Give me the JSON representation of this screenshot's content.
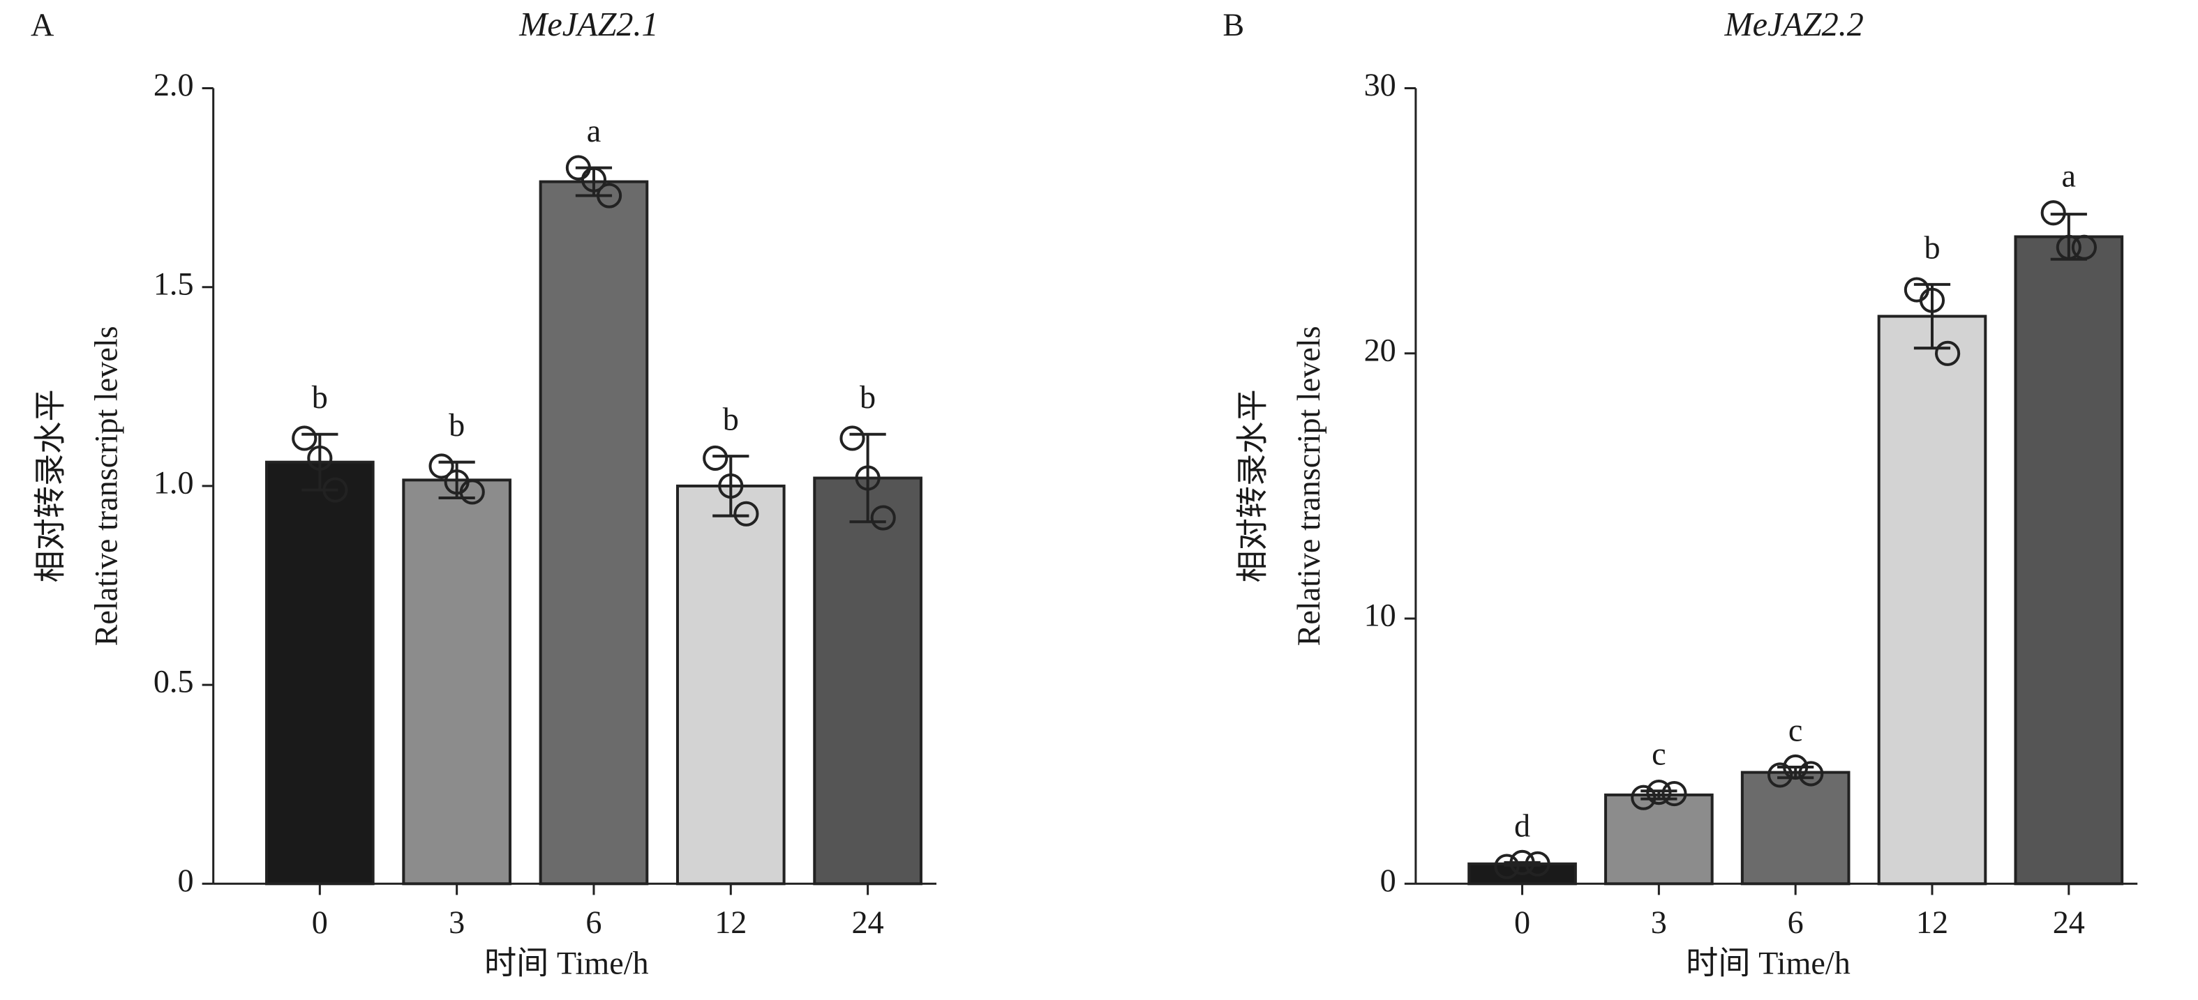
{
  "chart_data": [
    {
      "type": "bar",
      "panel_label": "A",
      "title": "MeJAZ2.1",
      "ylabel": [
        "相对转录水平",
        "Relative transcript levels"
      ],
      "xlabel": "时间 Time/h",
      "categories": [
        "0",
        "3",
        "6",
        "12",
        "24"
      ],
      "values": [
        1.06,
        1.015,
        1.765,
        1.0,
        1.02
      ],
      "errors": [
        0.07,
        0.045,
        0.035,
        0.075,
        0.11
      ],
      "points": [
        [
          1.12,
          1.07,
          0.99
        ],
        [
          1.05,
          1.01,
          0.985
        ],
        [
          1.8,
          1.77,
          1.73
        ],
        [
          1.07,
          1.0,
          0.93
        ],
        [
          1.12,
          1.02,
          0.92
        ]
      ],
      "annotations": [
        "b",
        "b",
        "a",
        "b",
        "b"
      ],
      "colors": [
        "#1a1a1a",
        "#8c8c8c",
        "#6b6b6b",
        "#d3d3d3",
        "#555555"
      ],
      "ylim": [
        0,
        2.0
      ],
      "yticks": [
        0,
        0.5,
        {
          "value": 1,
          "label": "1.0"
        },
        1.5,
        {
          "value": 2,
          "label": "2.0"
        }
      ]
    },
    {
      "type": "bar",
      "panel_label": "B",
      "title": "MeJAZ2.2",
      "ylabel": [
        "相对转录水平",
        "Relative transcript levels"
      ],
      "xlabel": "时间 Time/h",
      "categories": [
        "0",
        "3",
        "6",
        "12",
        "24"
      ],
      "values": [
        0.75,
        3.35,
        4.2,
        21.4,
        24.4
      ],
      "errors": [
        0.05,
        0.15,
        0.2,
        1.2,
        0.85
      ],
      "points": [
        [
          0.65,
          0.8,
          0.75
        ],
        [
          3.25,
          3.45,
          3.4
        ],
        [
          4.1,
          4.4,
          4.15
        ],
        [
          22.4,
          22.0,
          20.0
        ],
        [
          25.3,
          24.0,
          24.0
        ]
      ],
      "annotations": [
        "d",
        "c",
        "c",
        "b",
        "a"
      ],
      "colors": [
        "#1a1a1a",
        "#8c8c8c",
        "#6b6b6b",
        "#d3d3d3",
        "#555555"
      ],
      "ylim": [
        0,
        30
      ],
      "yticks": [
        0,
        10,
        20,
        30
      ]
    }
  ]
}
